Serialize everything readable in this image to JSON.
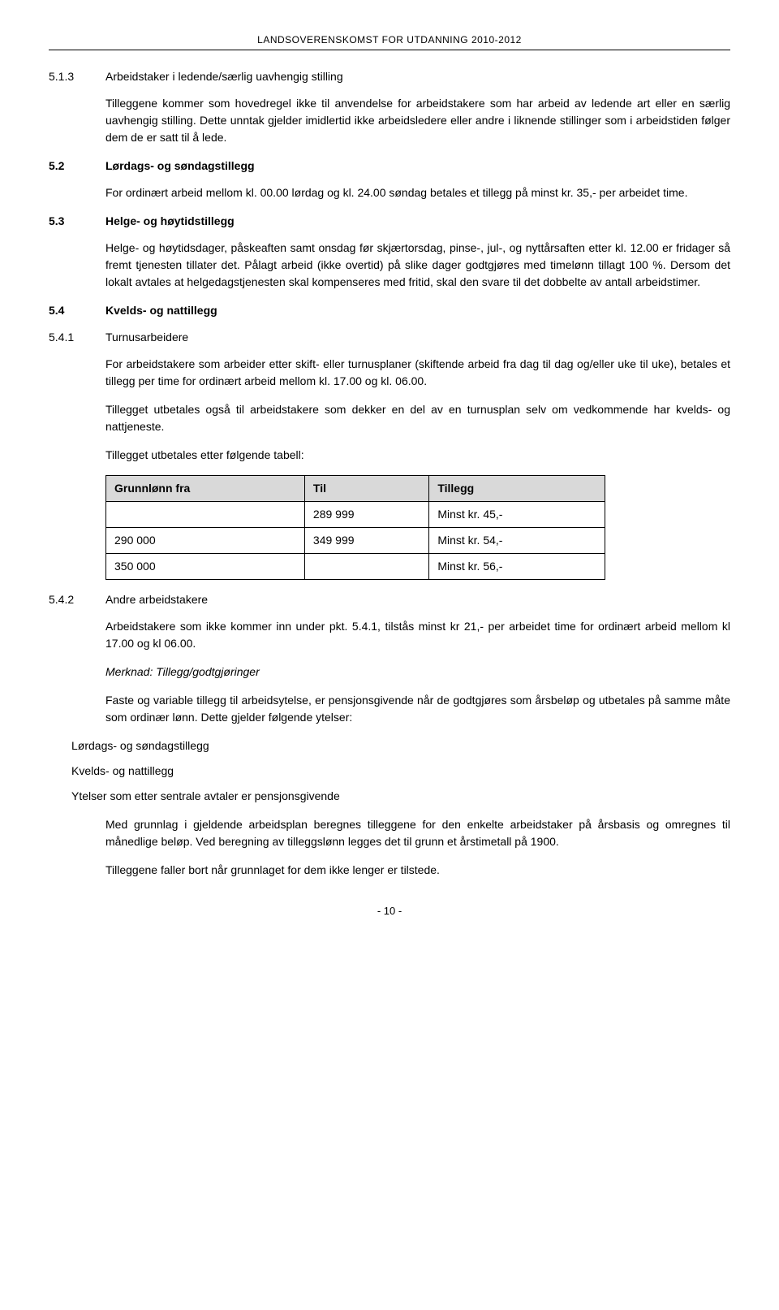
{
  "header": "LANDSOVERENSKOMST FOR UTDANNING 2010-2012",
  "s513": {
    "num": "5.1.3",
    "title": "Arbeidstaker i ledende/særlig uavhengig stilling",
    "p1": "Tilleggene kommer som hovedregel ikke til anvendelse for arbeidstakere som har arbeid av ledende art eller en særlig uavhengig stilling. Dette unntak gjelder imidlertid ikke arbeidsledere eller andre i liknende stillinger som i arbeidstiden følger dem de er satt til å lede."
  },
  "s52": {
    "num": "5.2",
    "title": "Lørdags- og søndagstillegg",
    "p1": "For ordinært arbeid mellom kl. 00.00 lørdag og kl. 24.00 søndag betales et tillegg på minst kr. 35,- per arbeidet time."
  },
  "s53": {
    "num": "5.3",
    "title": "Helge- og høytidstillegg",
    "p1": "Helge- og høytidsdager, påskeaften samt onsdag før skjærtorsdag, pinse-, jul-, og nyttårsaften etter kl. 12.00 er fridager så fremt tjenesten tillater det. Pålagt arbeid (ikke overtid) på slike dager godtgjøres med timelønn tillagt 100 %. Dersom det lokalt avtales at helgedagstjenesten skal kompenseres med fritid, skal den svare til det dobbelte av antall arbeidstimer."
  },
  "s54": {
    "num": "5.4",
    "title": "Kvelds- og nattillegg"
  },
  "s541": {
    "num": "5.4.1",
    "title": "Turnusarbeidere",
    "p1": "For arbeidstakere som arbeider etter skift- eller turnusplaner (skiftende arbeid fra dag til dag og/eller uke til uke), betales et tillegg per time for ordinært arbeid mellom kl. 17.00 og kl. 06.00.",
    "p2": "Tillegget utbetales også til arbeidstakere som dekker en del av en turnusplan selv om vedkommende har kvelds- og nattjeneste.",
    "p3": "Tillegget utbetales etter følgende tabell:"
  },
  "table": {
    "headers": [
      "Grunnlønn fra",
      "Til",
      "Tillegg"
    ],
    "rows": [
      [
        "",
        "289 999",
        "Minst kr. 45,-"
      ],
      [
        "290 000",
        "349 999",
        "Minst kr. 54,-"
      ],
      [
        "350 000",
        "",
        "Minst kr. 56,-"
      ]
    ],
    "header_bg": "#d9d9d9",
    "border_color": "#000000"
  },
  "s542": {
    "num": "5.4.2",
    "title": "Andre arbeidstakere",
    "p1": "Arbeidstakere som ikke kommer inn under pkt. 5.4.1, tilstås minst kr 21,- per arbeidet time for ordinært arbeid mellom kl 17.00 og kl 06.00.",
    "note_label": "Merknad: Tillegg/godtgjøringer",
    "p2": "Faste og variable tillegg til arbeidsytelse, er pensjonsgivende når de godtgjøres som årsbeløp og utbetales på samme måte som ordinær lønn. Dette gjelder følgende ytelser:",
    "items": [
      "Lørdags- og søndagstillegg",
      "Kvelds- og nattillegg",
      "Ytelser som etter sentrale avtaler er pensjonsgivende"
    ],
    "p3": "Med grunnlag i gjeldende arbeidsplan beregnes tilleggene for den enkelte arbeidstaker på årsbasis og omregnes til månedlige beløp. Ved beregning av tilleggslønn legges det til grunn et årstimetall på 1900.",
    "p4": "Tilleggene faller bort når grunnlaget for dem ikke lenger er tilstede."
  },
  "page_number": "- 10 -"
}
